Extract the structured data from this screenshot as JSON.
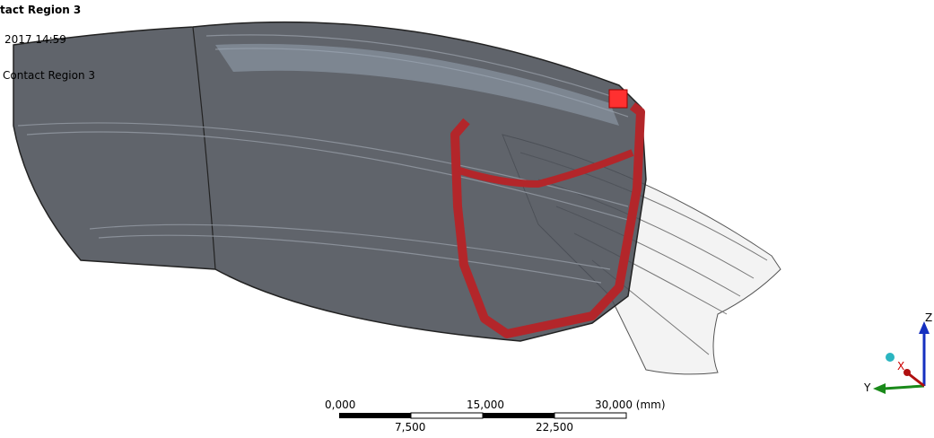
{
  "viewport": {
    "title": "tact Region 3",
    "timestamp": "2017 14:59",
    "legend_label": "Contact Region 3"
  },
  "scale_bar": {
    "top_labels": [
      "0,000",
      "15,000",
      "30,000 (mm)"
    ],
    "bottom_labels": [
      "7,500",
      "22,500"
    ]
  },
  "triad": {
    "z": "Z",
    "x": "X",
    "y": "Y"
  }
}
